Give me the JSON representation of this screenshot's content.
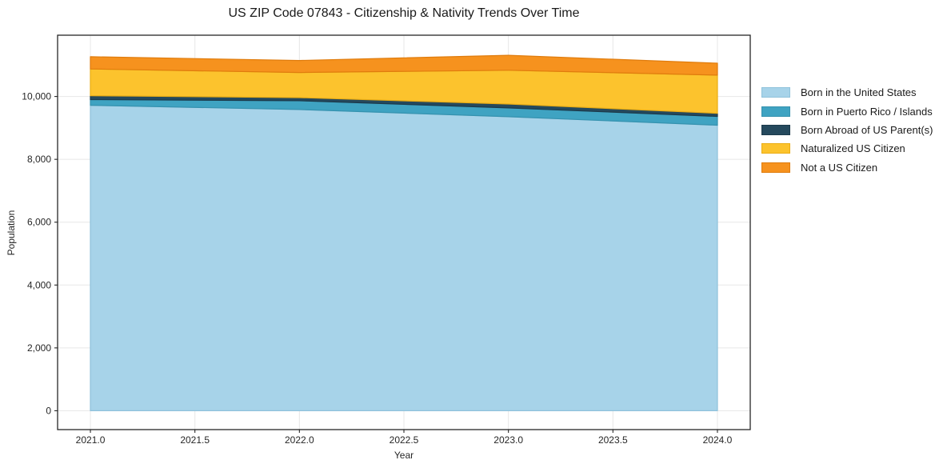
{
  "chart_data": {
    "type": "area",
    "stacked": true,
    "title": "US ZIP Code 07843 - Citizenship & Nativity Trends Over Time",
    "xlabel": "Year",
    "ylabel": "Population",
    "x": [
      2021,
      2022,
      2023,
      2024
    ],
    "series": [
      {
        "name": "Born in the United States",
        "color": "#a7d3e9",
        "edge": "#8fc2db",
        "values": [
          9720,
          9585,
          9355,
          9085
        ]
      },
      {
        "name": "Born in Puerto Rico / Islands",
        "color": "#3fa3c2",
        "edge": "#3592af",
        "values": [
          180,
          280,
          280,
          280
        ]
      },
      {
        "name": "Born Abroad of US Parent(s)",
        "color": "#25495d",
        "edge": "#1c3a4b",
        "values": [
          125,
          100,
          125,
          100
        ]
      },
      {
        "name": "Naturalized US Citizen",
        "color": "#fcc32d",
        "edge": "#eaad15",
        "values": [
          850,
          800,
          1075,
          1215
        ]
      },
      {
        "name": "Not a US Citizen",
        "color": "#f6921e",
        "edge": "#e07c0d",
        "values": [
          390,
          380,
          475,
          380
        ]
      }
    ],
    "x_ticks": {
      "values": [
        2021.0,
        2021.5,
        2022.0,
        2022.5,
        2023.0,
        2023.5,
        2024.0
      ],
      "labels": [
        "2021.0",
        "2021.5",
        "2022.0",
        "2022.5",
        "2023.0",
        "2023.5",
        "2024.0"
      ]
    },
    "y_ticks": {
      "values": [
        0,
        2000,
        4000,
        6000,
        8000,
        10000
      ],
      "labels": [
        "0",
        "2,000",
        "4,000",
        "6,000",
        "8,000",
        "10,000"
      ]
    },
    "xlim": [
      2020.843,
      2024.157
    ],
    "ylim": [
      -600,
      11950
    ],
    "grid": true,
    "legend_position": "right",
    "colors": {
      "background": "#ffffff",
      "frame": "#262626",
      "gridline": "#e7e7e7",
      "tick_text": "#262626"
    }
  }
}
